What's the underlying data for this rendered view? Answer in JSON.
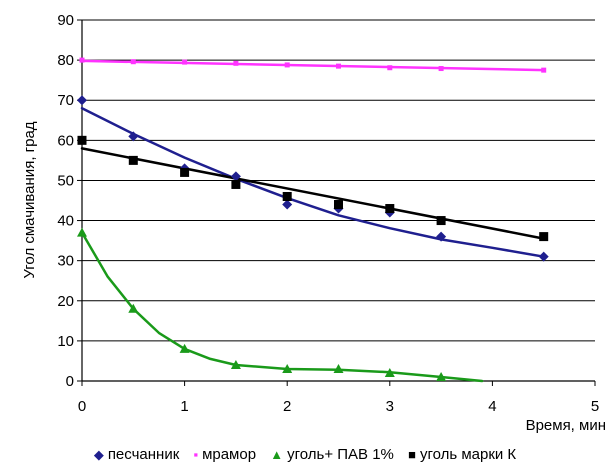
{
  "chart_data": {
    "type": "scatter",
    "xlabel": "Время, мин",
    "ylabel": "Угол смачивания, град",
    "xlim": [
      0,
      5
    ],
    "ylim": [
      0,
      90
    ],
    "x_ticks": [
      "0",
      "1",
      "2",
      "3",
      "4",
      "5"
    ],
    "y_ticks": [
      "0",
      "10",
      "20",
      "30",
      "40",
      "50",
      "60",
      "70",
      "80",
      "90"
    ],
    "grid": "horizontal",
    "legend_position": "bottom",
    "series": [
      {
        "name": "песчанник",
        "color": "#1f1f8f",
        "marker": "diamond",
        "marker_glyph": "◆",
        "points": [
          [
            0,
            70
          ],
          [
            0.5,
            61
          ],
          [
            1,
            53
          ],
          [
            1.5,
            51
          ],
          [
            2,
            44
          ],
          [
            2.5,
            43
          ],
          [
            3,
            42
          ],
          [
            3.5,
            36
          ],
          [
            4.5,
            31
          ]
        ],
        "trend": [
          [
            0,
            68
          ],
          [
            0.5,
            61.6
          ],
          [
            1,
            55.7
          ],
          [
            1.5,
            50.4
          ],
          [
            2,
            45.6
          ],
          [
            2.5,
            41.3
          ],
          [
            3,
            38.1
          ],
          [
            3.5,
            35.3
          ],
          [
            4,
            33.2
          ],
          [
            4.5,
            31
          ]
        ]
      },
      {
        "name": "мрамор",
        "color": "#ff33ff",
        "marker": "square",
        "marker_glyph": "▪",
        "points": [
          [
            0,
            80
          ],
          [
            0.5,
            79.6
          ],
          [
            1,
            79.5
          ],
          [
            1.5,
            79.2
          ],
          [
            2,
            78.8
          ],
          [
            2.5,
            78.5
          ],
          [
            3,
            78.1
          ],
          [
            3.5,
            77.9
          ],
          [
            4.5,
            77.5
          ]
        ],
        "trend": [
          [
            0,
            79.8
          ],
          [
            4.5,
            77.5
          ]
        ]
      },
      {
        "name": "уголь+ ПАВ 1%",
        "color": "#1a9a1a",
        "marker": "triangle",
        "marker_glyph": "▲",
        "points": [
          [
            0,
            37
          ],
          [
            0.5,
            18
          ],
          [
            1,
            8
          ],
          [
            1.5,
            4
          ],
          [
            2,
            3
          ],
          [
            2.5,
            3
          ],
          [
            3,
            2
          ],
          [
            3.5,
            1
          ]
        ],
        "trend": [
          [
            0,
            37
          ],
          [
            0.25,
            26
          ],
          [
            0.5,
            18
          ],
          [
            0.75,
            12
          ],
          [
            1,
            8
          ],
          [
            1.25,
            5.5
          ],
          [
            1.5,
            4
          ],
          [
            2,
            3
          ],
          [
            2.5,
            2.8
          ],
          [
            3,
            2.2
          ],
          [
            3.5,
            1
          ],
          [
            3.9,
            0
          ]
        ]
      },
      {
        "name": "уголь марки К",
        "color": "#000000",
        "marker": "square",
        "marker_glyph": "■",
        "points": [
          [
            0,
            60
          ],
          [
            0.5,
            55
          ],
          [
            1,
            52
          ],
          [
            1.5,
            49
          ],
          [
            2,
            46
          ],
          [
            2.5,
            44
          ],
          [
            3,
            43
          ],
          [
            3.5,
            40
          ],
          [
            4.5,
            36
          ]
        ],
        "trend": [
          [
            0,
            58
          ],
          [
            4.5,
            35.5
          ]
        ]
      }
    ]
  }
}
